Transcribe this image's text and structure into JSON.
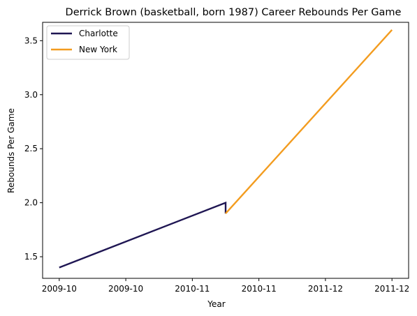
{
  "chart_data": {
    "type": "line",
    "title": "Derrick Brown (basketball, born 1987) Career Rebounds Per Game",
    "xlabel": "Year",
    "ylabel": "Rebounds Per Game",
    "x_tick_labels": [
      "2009-10",
      "2009-10",
      "2010-11",
      "2010-11",
      "2011-12",
      "2011-12"
    ],
    "y_ticks": [
      "1.5",
      "2.0",
      "2.5",
      "3.0",
      "3.5"
    ],
    "ylim": [
      1.3,
      3.67
    ],
    "xlim": [
      -0.1,
      2.1
    ],
    "grid": false,
    "legend_position": "top-left",
    "series": [
      {
        "name": "Charlotte",
        "color": "#1f1653",
        "points": [
          {
            "x": 0,
            "y": 1.4
          },
          {
            "x": 1.0,
            "y": 2.0
          },
          {
            "x": 1.0,
            "y": 1.9
          }
        ]
      },
      {
        "name": "New York",
        "color": "#f39c1f",
        "points": [
          {
            "x": 1.0,
            "y": 1.9
          },
          {
            "x": 2.0,
            "y": 3.6
          }
        ]
      }
    ]
  }
}
